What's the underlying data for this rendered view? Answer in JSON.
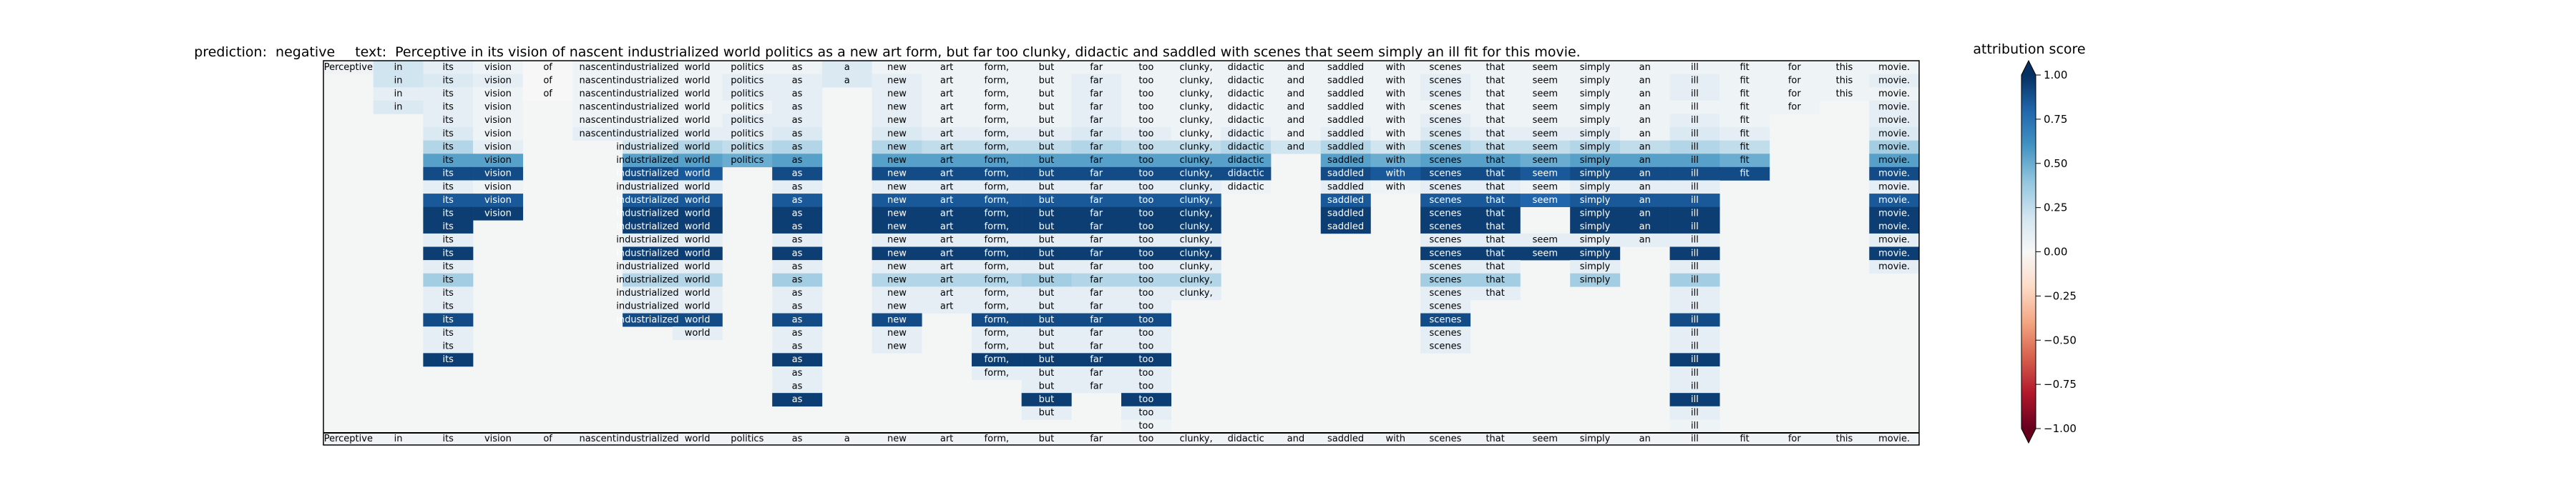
{
  "chart_data": {
    "type": "heatmap",
    "title": {
      "prediction_label": "prediction:",
      "prediction_value": "negative",
      "text_label": "text:",
      "text_value": "Perceptive in its vision of nascent industrialized world politics as a new art form, but far too clunky, didactic and saddled with scenes that seem simply an ill fit for this movie."
    },
    "tokens": [
      "Perceptive",
      "in",
      "its",
      "vision",
      "of",
      "nascent",
      "industrialized",
      "world",
      "politics",
      "as",
      "a",
      "new",
      "art",
      "form,",
      "but",
      "far",
      "too",
      "clunky,",
      "didactic",
      "and",
      "saddled",
      "with",
      "scenes",
      "that",
      "seem",
      "simply",
      "an",
      "ill",
      "fit",
      "for",
      "this",
      "movie."
    ],
    "rows": [
      [
        0.04,
        0.2,
        0.1,
        0.05,
        0.0,
        0.05,
        0.05,
        0.05,
        0.05,
        0.05,
        0.15,
        0.05,
        0.05,
        0.05,
        0.05,
        0.05,
        0.05,
        0.05,
        0.05,
        0.05,
        0.05,
        0.05,
        0.05,
        0.05,
        0.05,
        0.05,
        0.05,
        0.05,
        0.05,
        0.05,
        0.05,
        0.05
      ],
      [
        null,
        0.2,
        0.15,
        0.1,
        0.0,
        0.05,
        0.05,
        0.05,
        0.1,
        0.1,
        0.15,
        0.1,
        0.05,
        0.05,
        0.05,
        0.1,
        0.05,
        0.05,
        0.05,
        0.05,
        0.05,
        0.05,
        0.1,
        0.05,
        0.05,
        0.05,
        0.05,
        0.1,
        0.05,
        0.05,
        0.05,
        0.1
      ],
      [
        null,
        0.1,
        0.1,
        0.05,
        0.0,
        0.05,
        0.05,
        0.05,
        0.1,
        0.1,
        null,
        0.1,
        0.05,
        0.05,
        0.05,
        0.1,
        0.05,
        0.05,
        0.05,
        0.05,
        0.05,
        0.05,
        0.1,
        0.05,
        0.05,
        0.05,
        0.05,
        0.1,
        0.05,
        0.05,
        0.05,
        0.05
      ],
      [
        null,
        0.15,
        0.1,
        0.05,
        null,
        0.05,
        0.05,
        0.05,
        0.05,
        0.1,
        null,
        0.1,
        0.05,
        0.05,
        0.05,
        0.1,
        0.05,
        0.05,
        0.05,
        0.05,
        0.05,
        0.05,
        0.05,
        0.05,
        0.05,
        0.05,
        0.05,
        0.05,
        0.05,
        0.05,
        null,
        0.1
      ],
      [
        null,
        null,
        0.1,
        0.05,
        null,
        0.05,
        0.05,
        0.05,
        0.1,
        0.1,
        null,
        0.1,
        0.05,
        0.05,
        0.05,
        0.1,
        0.05,
        0.05,
        0.05,
        0.05,
        0.05,
        0.05,
        0.1,
        0.05,
        0.05,
        0.05,
        0.05,
        0.1,
        0.05,
        null,
        null,
        0.1
      ],
      [
        null,
        null,
        0.15,
        0.05,
        null,
        0.1,
        0.1,
        0.1,
        0.1,
        0.15,
        null,
        0.15,
        0.1,
        0.1,
        0.1,
        0.15,
        0.1,
        0.05,
        0.1,
        0.05,
        0.1,
        0.05,
        0.15,
        0.1,
        0.1,
        0.1,
        0.05,
        0.15,
        0.1,
        null,
        null,
        0.15
      ],
      [
        null,
        null,
        0.3,
        0.1,
        null,
        null,
        0.2,
        0.3,
        0.25,
        0.3,
        null,
        0.3,
        0.25,
        0.25,
        0.25,
        0.3,
        0.25,
        0.25,
        0.3,
        0.2,
        0.3,
        0.2,
        0.3,
        0.25,
        0.25,
        0.3,
        0.25,
        0.3,
        0.25,
        null,
        null,
        0.35
      ],
      [
        null,
        null,
        0.55,
        0.55,
        null,
        null,
        0.55,
        0.55,
        0.5,
        0.55,
        null,
        0.55,
        0.55,
        0.55,
        0.55,
        0.55,
        0.55,
        0.55,
        0.55,
        null,
        0.55,
        0.5,
        0.55,
        0.55,
        0.5,
        0.55,
        0.55,
        0.55,
        0.5,
        null,
        null,
        0.55
      ],
      [
        null,
        null,
        0.9,
        0.9,
        null,
        null,
        0.9,
        0.85,
        null,
        0.9,
        null,
        0.9,
        0.9,
        0.9,
        0.9,
        0.9,
        0.9,
        0.9,
        0.9,
        null,
        0.9,
        0.85,
        0.9,
        0.9,
        0.85,
        0.9,
        0.9,
        0.9,
        0.9,
        null,
        null,
        0.9
      ],
      [
        null,
        null,
        0.1,
        0.05,
        null,
        null,
        0.1,
        0.1,
        null,
        0.1,
        null,
        0.1,
        0.1,
        0.1,
        0.1,
        0.1,
        0.1,
        0.1,
        0.05,
        null,
        0.1,
        0.05,
        0.1,
        0.1,
        0.05,
        0.1,
        0.1,
        0.1,
        null,
        null,
        null,
        0.1
      ],
      [
        null,
        null,
        0.85,
        0.85,
        null,
        null,
        0.85,
        0.85,
        null,
        0.85,
        null,
        0.85,
        0.85,
        0.85,
        0.85,
        0.85,
        0.85,
        0.85,
        null,
        null,
        0.85,
        null,
        0.85,
        0.85,
        0.8,
        0.85,
        0.85,
        0.85,
        null,
        null,
        null,
        0.85
      ],
      [
        null,
        null,
        0.95,
        0.95,
        null,
        null,
        0.95,
        0.95,
        null,
        0.95,
        null,
        0.95,
        0.95,
        0.95,
        0.95,
        0.95,
        0.95,
        0.95,
        null,
        null,
        0.95,
        null,
        0.95,
        0.95,
        null,
        0.95,
        0.95,
        0.95,
        null,
        null,
        null,
        0.95
      ],
      [
        null,
        null,
        0.95,
        null,
        null,
        null,
        0.95,
        0.95,
        null,
        0.95,
        null,
        0.95,
        0.95,
        0.95,
        0.95,
        0.95,
        0.95,
        0.95,
        null,
        null,
        0.95,
        null,
        0.95,
        0.95,
        null,
        0.95,
        0.95,
        0.95,
        null,
        null,
        null,
        0.95
      ],
      [
        null,
        null,
        0.1,
        null,
        null,
        null,
        0.1,
        0.1,
        null,
        0.1,
        null,
        0.1,
        0.1,
        0.1,
        0.1,
        0.1,
        0.1,
        0.1,
        null,
        null,
        null,
        null,
        0.1,
        0.1,
        0.1,
        0.1,
        0.1,
        0.1,
        null,
        null,
        null,
        0.1
      ],
      [
        null,
        null,
        0.95,
        null,
        null,
        null,
        0.95,
        0.95,
        null,
        0.95,
        null,
        0.95,
        0.95,
        0.95,
        0.95,
        0.95,
        0.95,
        0.95,
        null,
        null,
        null,
        null,
        0.95,
        0.95,
        0.95,
        0.95,
        null,
        0.95,
        null,
        null,
        null,
        0.95
      ],
      [
        null,
        null,
        0.1,
        null,
        null,
        null,
        0.1,
        0.1,
        null,
        0.1,
        null,
        0.1,
        0.1,
        0.1,
        0.1,
        0.1,
        0.1,
        0.1,
        null,
        null,
        null,
        null,
        0.1,
        0.1,
        null,
        0.1,
        null,
        0.1,
        null,
        null,
        null,
        0.1
      ],
      [
        null,
        null,
        0.35,
        null,
        null,
        null,
        0.3,
        0.3,
        null,
        0.35,
        null,
        0.3,
        0.3,
        0.3,
        0.35,
        0.3,
        0.3,
        0.3,
        null,
        null,
        null,
        null,
        0.35,
        0.35,
        null,
        0.35,
        null,
        0.35,
        null,
        null,
        null,
        null
      ],
      [
        null,
        null,
        0.1,
        null,
        null,
        null,
        0.1,
        0.1,
        null,
        0.1,
        null,
        0.1,
        0.1,
        0.1,
        0.1,
        0.1,
        0.1,
        0.1,
        null,
        null,
        null,
        null,
        0.1,
        0.1,
        null,
        null,
        null,
        0.1,
        null,
        null,
        null,
        null
      ],
      [
        null,
        null,
        0.1,
        null,
        null,
        null,
        0.1,
        0.1,
        null,
        0.1,
        null,
        0.1,
        0.1,
        0.1,
        0.1,
        0.1,
        0.1,
        null,
        null,
        null,
        null,
        null,
        0.1,
        null,
        null,
        null,
        null,
        0.1,
        null,
        null,
        null,
        null
      ],
      [
        null,
        null,
        0.9,
        null,
        null,
        null,
        0.9,
        0.9,
        null,
        0.9,
        null,
        0.9,
        null,
        0.9,
        0.9,
        0.9,
        0.9,
        null,
        null,
        null,
        null,
        null,
        0.9,
        null,
        null,
        null,
        null,
        0.9,
        null,
        null,
        null,
        null
      ],
      [
        null,
        null,
        0.1,
        null,
        null,
        null,
        null,
        0.1,
        null,
        0.1,
        null,
        0.1,
        null,
        0.1,
        0.1,
        0.1,
        0.1,
        null,
        null,
        null,
        null,
        null,
        0.1,
        null,
        null,
        null,
        null,
        0.1,
        null,
        null,
        null,
        null
      ],
      [
        null,
        null,
        0.1,
        null,
        null,
        null,
        null,
        null,
        null,
        0.1,
        null,
        0.1,
        null,
        0.1,
        0.1,
        0.1,
        0.1,
        null,
        null,
        null,
        null,
        null,
        0.1,
        null,
        null,
        null,
        null,
        0.1,
        null,
        null,
        null,
        null
      ],
      [
        null,
        null,
        0.95,
        null,
        null,
        null,
        null,
        null,
        null,
        0.95,
        null,
        null,
        null,
        0.95,
        0.95,
        0.95,
        0.95,
        null,
        null,
        null,
        null,
        null,
        null,
        null,
        null,
        null,
        null,
        0.95,
        null,
        null,
        null,
        null
      ],
      [
        null,
        null,
        null,
        null,
        null,
        null,
        null,
        null,
        null,
        0.1,
        null,
        null,
        null,
        0.1,
        0.1,
        0.1,
        0.1,
        null,
        null,
        null,
        null,
        null,
        null,
        null,
        null,
        null,
        null,
        0.1,
        null,
        null,
        null,
        null
      ],
      [
        null,
        null,
        null,
        null,
        null,
        null,
        null,
        null,
        null,
        0.1,
        null,
        null,
        null,
        null,
        0.1,
        0.1,
        0.1,
        null,
        null,
        null,
        null,
        null,
        null,
        null,
        null,
        null,
        null,
        0.1,
        null,
        null,
        null,
        null
      ],
      [
        null,
        null,
        null,
        null,
        null,
        null,
        null,
        null,
        null,
        0.95,
        null,
        null,
        null,
        null,
        0.95,
        null,
        0.95,
        null,
        null,
        null,
        null,
        null,
        null,
        null,
        null,
        null,
        null,
        0.95,
        null,
        null,
        null,
        null
      ],
      [
        null,
        null,
        null,
        null,
        null,
        null,
        null,
        null,
        null,
        null,
        null,
        null,
        null,
        null,
        0.1,
        null,
        0.1,
        null,
        null,
        null,
        null,
        null,
        null,
        null,
        null,
        null,
        null,
        0.1,
        null,
        null,
        null,
        null
      ],
      [
        null,
        null,
        null,
        null,
        null,
        null,
        null,
        null,
        null,
        null,
        null,
        null,
        null,
        null,
        null,
        null,
        0.05,
        null,
        null,
        null,
        null,
        null,
        null,
        null,
        null,
        null,
        null,
        0.05,
        null,
        null,
        null,
        null
      ]
    ],
    "bottom_row": [
      0.04,
      0.04,
      0.04,
      0.04,
      0.04,
      0.04,
      0.04,
      0.04,
      0.04,
      0.04,
      0.04,
      0.04,
      0.04,
      0.04,
      0.04,
      0.04,
      0.04,
      0.04,
      0.04,
      0.04,
      0.04,
      0.04,
      0.04,
      0.04,
      0.04,
      0.04,
      0.04,
      0.04,
      0.04,
      0.04,
      0.04,
      0.04
    ],
    "colorbar": {
      "label": "attribution score",
      "min": -1,
      "max": 1,
      "ticks": [
        "1.00",
        "0.75",
        "0.50",
        "0.25",
        "0.00",
        "−0.25",
        "−0.50",
        "−0.75",
        "−1.00"
      ],
      "colormap": "RdBu",
      "extend": "both"
    },
    "background_color": "#f4f6f6"
  }
}
